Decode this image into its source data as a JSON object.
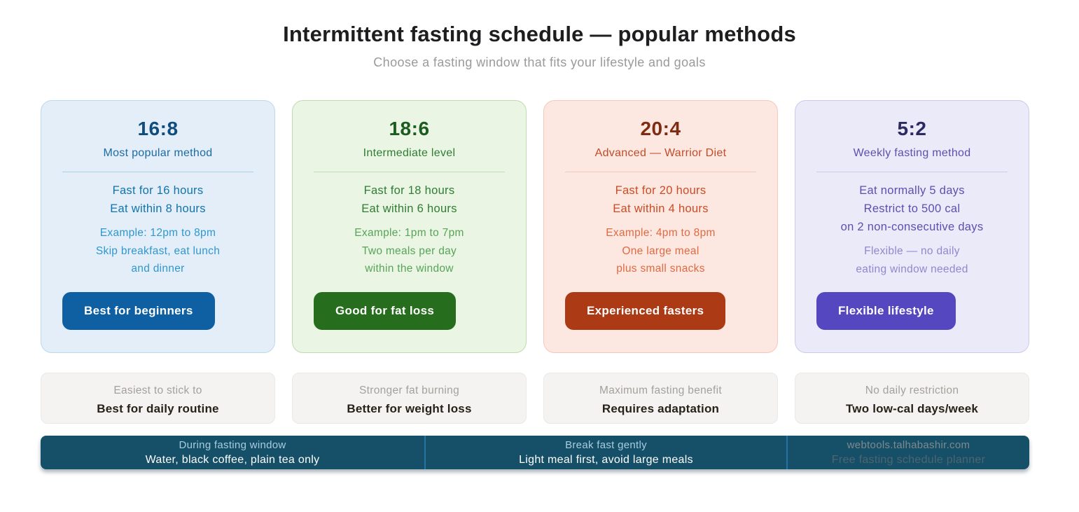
{
  "header": {
    "title": "Intermittent fasting schedule — popular methods",
    "subtitle": "Choose a fasting window that fits your lifestyle and goals"
  },
  "cards": [
    {
      "ratio": "16:8",
      "subtitle": "Most popular method",
      "body_lines": [
        "Fast for 16 hours",
        "Eat within 8 hours"
      ],
      "example_lines": [
        "Example: 12pm to 8pm",
        "Skip breakfast, eat lunch",
        "and dinner"
      ],
      "button_label": "Best for beginners",
      "colors": {
        "bg": "#e3eef8",
        "border": "#bcd8ec",
        "divider": "#aacfe6",
        "title": "#0f4d7d",
        "subtitle": "#1b6ba5",
        "body": "#1173ad",
        "example": "#2f97cf",
        "button_bg": "#0e60a2"
      }
    },
    {
      "ratio": "18:6",
      "subtitle": "Intermediate level",
      "body_lines": [
        "Fast for 18 hours",
        "Eat within 6 hours"
      ],
      "example_lines": [
        "Example: 1pm to 7pm",
        "Two meals per day",
        "within the window"
      ],
      "button_label": "Good for fat loss",
      "colors": {
        "bg": "#eaf5e4",
        "border": "#bedcae",
        "divider": "#bfdfb0",
        "title": "#1c5c21",
        "subtitle": "#2f7d33",
        "body": "#2f7d33",
        "example": "#57a458",
        "button_bg": "#266e1e"
      }
    },
    {
      "ratio": "20:4",
      "subtitle": "Advanced — Warrior Diet",
      "body_lines": [
        "Fast for 20 hours",
        "Eat within 4 hours"
      ],
      "example_lines": [
        "Example: 4pm to 8pm",
        "One large meal",
        "plus small snacks"
      ],
      "button_label": "Experienced fasters",
      "colors": {
        "bg": "#fde7e1",
        "border": "#f6c7ba",
        "divider": "#f5c9ba",
        "title": "#7e2c13",
        "subtitle": "#c14c27",
        "body": "#cc4b24",
        "example": "#e06a41",
        "button_bg": "#ac3a14"
      }
    },
    {
      "ratio": "5:2",
      "subtitle": "Weekly fasting method",
      "body_lines": [
        "Eat normally 5 days",
        "Restrict to 500 cal",
        "on 2 non-consecutive days"
      ],
      "example_lines": [
        "Flexible — no daily",
        "eating window needed"
      ],
      "button_label": "Flexible lifestyle",
      "colors": {
        "bg": "#eaeaf9",
        "border": "#ccc9ef",
        "divider": "#ccc8ee",
        "title": "#2b2a62",
        "subtitle": "#5b50b0",
        "body": "#5b50b0",
        "example": "#8f88cf",
        "button_bg": "#5447c0"
      }
    }
  ],
  "summaries": [
    {
      "line1": "Easiest to stick to",
      "line2": "Best for daily routine"
    },
    {
      "line1": "Stronger fat burning",
      "line2": "Better for weight loss"
    },
    {
      "line1": "Maximum fasting benefit",
      "line2": "Requires adaptation"
    },
    {
      "line1": "No daily restriction",
      "line2": "Two low-cal days/week"
    }
  ],
  "footer": {
    "bg": "#164f68",
    "divider_color": "#2573a3",
    "sections": [
      {
        "line1": "During fasting window",
        "line2": "Water, black coffee, plain tea only"
      },
      {
        "line1": "Break fast gently",
        "line2": "Light meal first, avoid large meals"
      },
      {
        "line1": "webtools.talhabashir.com",
        "line2": "Free fasting schedule planner"
      }
    ]
  }
}
